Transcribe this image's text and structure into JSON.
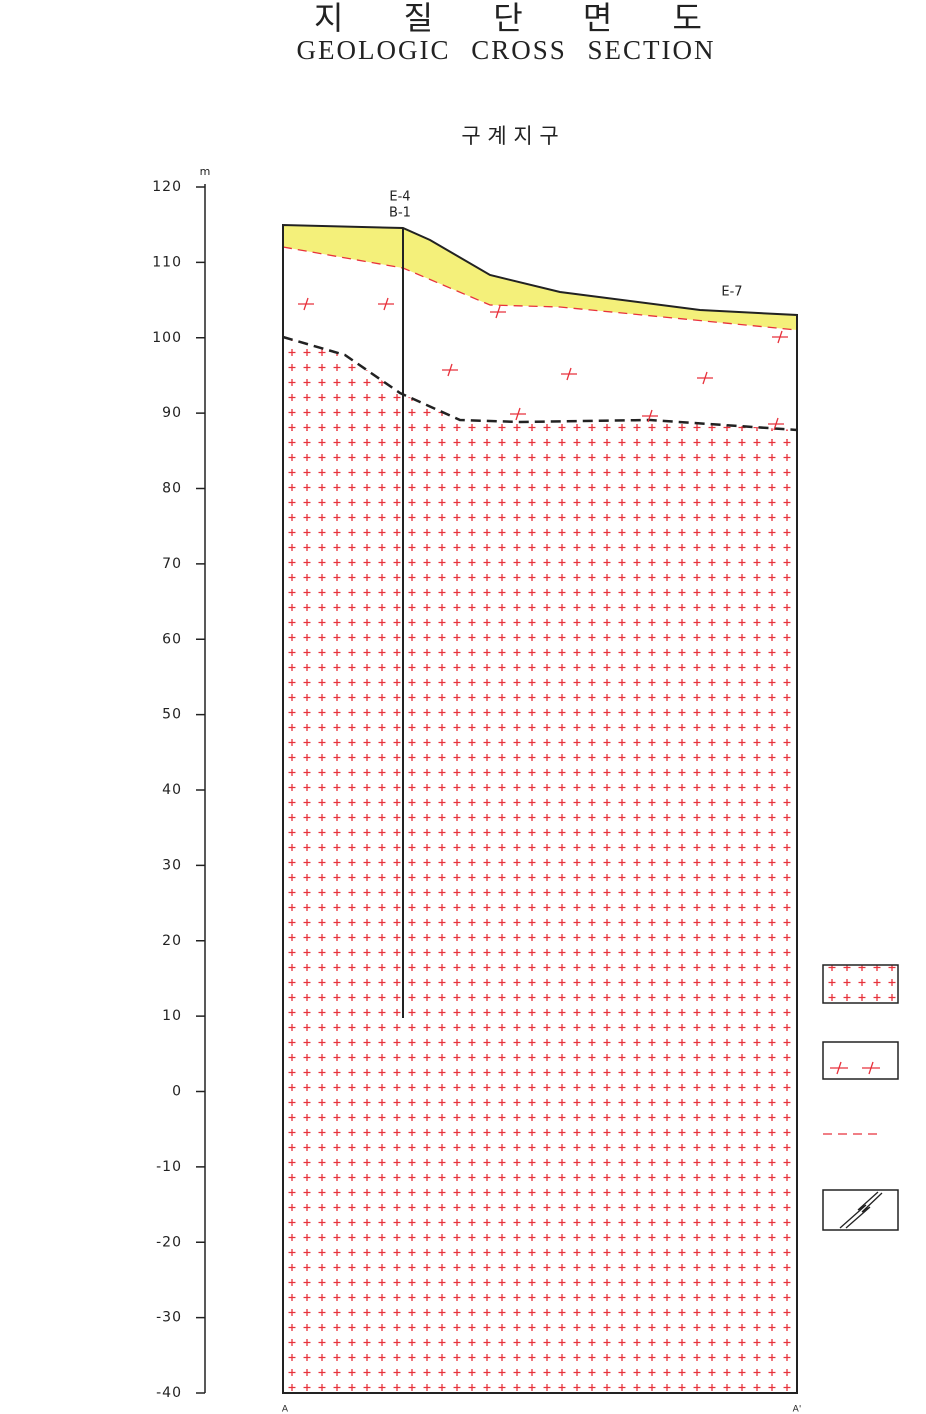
{
  "header": {
    "title": "지 질 단 면 도",
    "subtitle": "GEOLOGIC CROSS SECTION"
  },
  "section": {
    "name": "구 계 지 구",
    "unit": "m",
    "yticks": [
      120,
      110,
      100,
      90,
      80,
      70,
      60,
      50,
      40,
      30,
      20,
      10,
      0,
      -10,
      -20,
      -30,
      -40
    ],
    "boreholes": [
      "E-4",
      "B-1",
      "E-7"
    ],
    "ends": [
      "A",
      "A'"
    ]
  }
}
